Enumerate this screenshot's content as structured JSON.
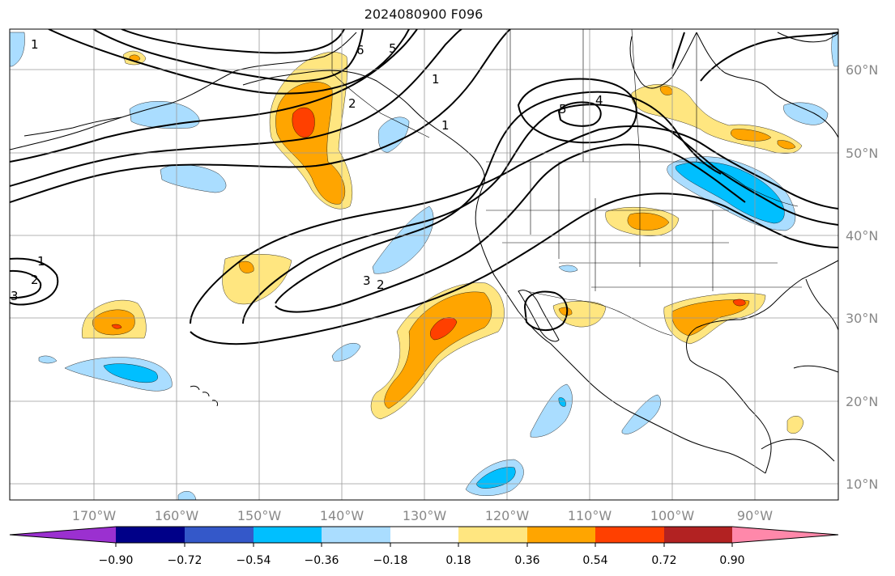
{
  "title": "2024080900 F096",
  "map": {
    "lon_labels": [
      "170°W",
      "160°W",
      "150°W",
      "140°W",
      "130°W",
      "120°W",
      "110°W",
      "100°W",
      "90°W"
    ],
    "lat_labels": [
      "60°N",
      "50°N",
      "40°N",
      "30°N",
      "20°N",
      "10°N"
    ],
    "contour_labels": [
      "6",
      "5",
      "2",
      "1",
      "3",
      "1",
      "5",
      "4",
      "1",
      "1",
      "2",
      "3",
      "2"
    ],
    "label_color": "#888888"
  },
  "colorbar": {
    "colors": [
      "#9b30d0",
      "#000088",
      "#3458c9",
      "#00bfff",
      "#aaddff",
      "#ffffff",
      "#ffe680",
      "#ffa500",
      "#ff4000",
      "#b22222",
      "#ff88aa"
    ],
    "tick_labels": [
      "−0.90",
      "−0.72",
      "−0.54",
      "−0.36",
      "−0.18",
      "0.18",
      "0.36",
      "0.54",
      "0.72",
      "0.90"
    ]
  },
  "fill_colors": {
    "light_blue": "#aaddff",
    "blue": "#00bfff",
    "light_yellow": "#ffe680",
    "orange": "#ffa500",
    "red_orange": "#ff4000"
  }
}
